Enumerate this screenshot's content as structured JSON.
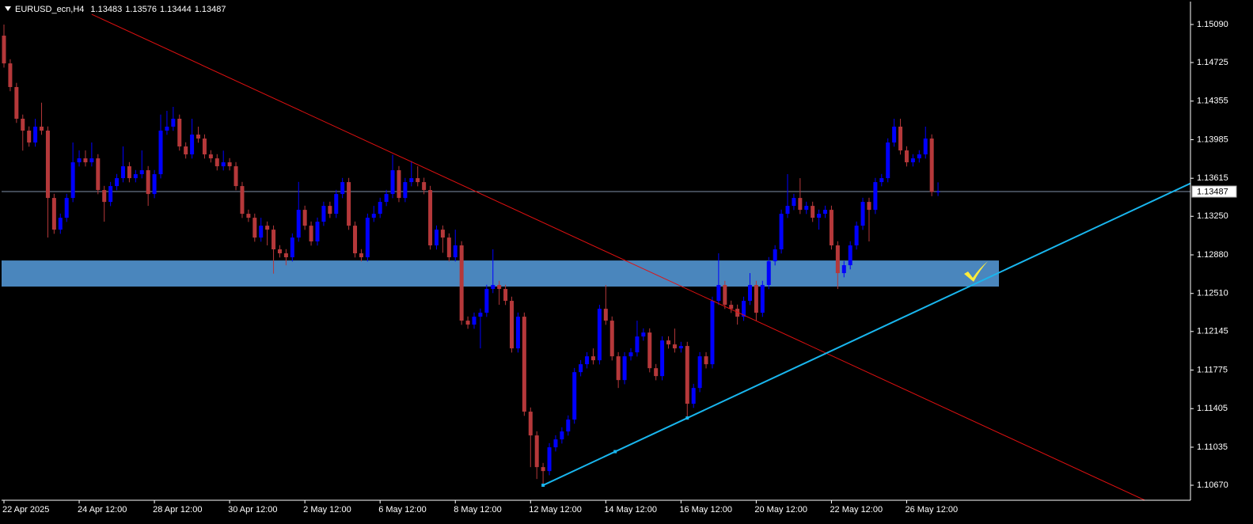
{
  "chart_data": {
    "type": "candlestick",
    "symbol": "EURUSD_ecn,H4",
    "ohlc": [
      1.13483,
      1.13576,
      1.13444,
      1.13487
    ],
    "bull_color": "#0000ff",
    "bear_color": "#b5383a",
    "grid": false,
    "ylim": [
      1.10526,
      1.15325
    ],
    "yticks": [
      {
        "value": 1.1509,
        "label": "1.15090"
      },
      1.14725,
      1.14355,
      1.13985,
      1.13615,
      {
        "value": 1.1325,
        "label": "1.13250"
      },
      {
        "value": 1.1288,
        "label": "1.12880"
      },
      {
        "value": 1.1251,
        "label": "1.12510"
      },
      1.12145,
      1.11775,
      1.11405,
      1.11035,
      {
        "value": 1.1067,
        "label": "1.10670"
      }
    ],
    "current_price": 1.13487,
    "current_price_color": "#7f8fa8",
    "zone": {
      "top": 1.12826,
      "bottom": 1.12576,
      "color": "#4a86bd"
    },
    "trendlines": [
      {
        "color": "#e01010",
        "points": [
          [
            14,
            1.15188
          ],
          [
            170,
            1.10859
          ]
        ]
      },
      {
        "color": "#19b6ee",
        "points": [
          [
            86,
            1.1067
          ],
          [
            109,
            1.11315
          ]
        ]
      }
    ],
    "categories": [
      "22 Apr 2025",
      null,
      null,
      null,
      null,
      null,
      null,
      null,
      null,
      null,
      null,
      null,
      "24 Apr 12:00",
      null,
      null,
      null,
      null,
      null,
      null,
      null,
      null,
      null,
      null,
      null,
      "28 Apr 12:00",
      null,
      null,
      null,
      null,
      null,
      null,
      null,
      null,
      null,
      null,
      null,
      "30 Apr 12:00",
      null,
      null,
      null,
      null,
      null,
      null,
      null,
      null,
      null,
      null,
      null,
      "2 May 12:00",
      null,
      null,
      null,
      null,
      null,
      null,
      null,
      null,
      null,
      null,
      null,
      "6 May 12:00",
      null,
      null,
      null,
      null,
      null,
      null,
      null,
      null,
      null,
      null,
      null,
      "8 May 12:00",
      null,
      null,
      null,
      null,
      null,
      null,
      null,
      null,
      null,
      null,
      null,
      "12 May 12:00",
      null,
      null,
      null,
      null,
      null,
      null,
      null,
      null,
      null,
      null,
      null,
      "14 May 12:00",
      null,
      null,
      null,
      null,
      null,
      null,
      null,
      null,
      null,
      null,
      null,
      "16 May 12:00",
      null,
      null,
      null,
      null,
      null,
      null,
      null,
      null,
      null,
      null,
      null,
      "20 May 12:00",
      null,
      null,
      null,
      null,
      null,
      null,
      null,
      null,
      null,
      null,
      null,
      "22 May 12:00",
      null,
      null,
      null,
      null,
      null,
      null,
      null,
      null,
      null,
      null,
      null,
      "26 May 12:00",
      null,
      null,
      null,
      null,
      null
    ],
    "open": [
      1.14983,
      1.14717,
      1.1449,
      1.14186,
      1.14072,
      1.13958,
      1.1411,
      1.14072,
      1.13426,
      1.13122,
      1.13236,
      1.13426,
      1.13768,
      1.13806,
      1.13768,
      1.13806,
      1.13502,
      1.13388,
      1.1354,
      1.13616,
      1.1373,
      1.13616,
      1.13654,
      1.13692,
      1.13464,
      1.13654,
      1.14072,
      1.1411,
      1.14186,
      1.1392,
      1.13844,
      1.14034,
      1.13996,
      1.13844,
      1.13806,
      1.1373,
      1.13768,
      1.1373,
      1.1354,
      1.13274,
      1.13236,
      1.13046,
      1.1316,
      1.13122,
      1.12933,
      1.12895,
      1.12857,
      1.13046,
      1.13312,
      1.1316,
      1.13009,
      1.13198,
      1.1335,
      1.13274,
      1.13464,
      1.13578,
      1.1316,
      1.12895,
      1.12857,
      1.13236,
      1.13274,
      1.13388,
      1.13464,
      1.13692,
      1.13426,
      1.13578,
      1.13616,
      1.13578,
      1.13502,
      1.12971,
      1.13122,
      1.13046,
      1.12857,
      1.12971,
      1.12249,
      1.12211,
      1.12287,
      1.12325,
      1.12553,
      1.12591,
      1.12553,
      1.12439,
      1.11983,
      1.12287,
      1.11376,
      1.11148,
      1.10844,
      1.10806,
      1.11034,
      1.1111,
      1.11186,
      1.113,
      1.11755,
      1.11831,
      1.11907,
      1.11869,
      1.12363,
      1.12249,
      1.11907,
      1.11679,
      1.11907,
      1.11945,
      1.12097,
      1.12135,
      1.11793,
      1.11717,
      1.12059,
      1.12021,
      1.11983,
      1.12006,
      1.11452,
      1.11603,
      1.11907,
      1.11831,
      1.12439,
      1.12591,
      1.12401,
      1.12363,
      1.12287,
      1.12439,
      1.12591,
      1.12325,
      1.12591,
      1.12819,
      1.12933,
      1.13274,
      1.1335,
      1.13426,
      1.13312,
      1.1335,
      1.13236,
      1.13274,
      1.13312,
      1.12971,
      1.12705,
      1.12781,
      1.12971,
      1.1316,
      1.13388,
      1.13312,
      1.13578,
      1.13616,
      1.13958,
      1.1411,
      1.13882,
      1.13768,
      1.13806,
      1.13844,
      1.13996,
      1.13483
    ],
    "high": [
      1.1509,
      1.14757,
      1.1453,
      1.14226,
      1.14112,
      1.14186,
      1.1434,
      1.14112,
      1.13466,
      1.13276,
      1.13466,
      1.13958,
      1.13882,
      1.13882,
      1.13958,
      1.13846,
      1.13542,
      1.1358,
      1.13656,
      1.1392,
      1.1377,
      1.13694,
      1.13882,
      1.13732,
      1.13694,
      1.14226,
      1.14262,
      1.143,
      1.14226,
      1.1396,
      1.14186,
      1.1411,
      1.14036,
      1.13884,
      1.13846,
      1.1388,
      1.13808,
      1.1377,
      1.1358,
      1.13314,
      1.13276,
      1.13236,
      1.132,
      1.13162,
      1.12973,
      1.12935,
      1.13086,
      1.1358,
      1.13352,
      1.132,
      1.13238,
      1.1339,
      1.1339,
      1.13504,
      1.13618,
      1.13618,
      1.132,
      1.12935,
      1.13276,
      1.1335,
      1.13428,
      1.13504,
      1.1384,
      1.13732,
      1.13618,
      1.1378,
      1.1373,
      1.1362,
      1.13542,
      1.13162,
      1.13162,
      1.13086,
      1.13122,
      1.13011,
      1.12289,
      1.12327,
      1.12365,
      1.12593,
      1.12933,
      1.12631,
      1.12593,
      1.12479,
      1.12327,
      1.12327,
      1.11416,
      1.11188,
      1.10884,
      1.11074,
      1.1115,
      1.11226,
      1.1134,
      1.11795,
      1.11871,
      1.11947,
      1.11983,
      1.12401,
      1.12591,
      1.12289,
      1.11947,
      1.11947,
      1.11985,
      1.12249,
      1.12175,
      1.12175,
      1.11833,
      1.12099,
      1.12099,
      1.12173,
      1.12046,
      1.12046,
      1.11643,
      1.11947,
      1.11947,
      1.12479,
      1.12895,
      1.12631,
      1.12441,
      1.12403,
      1.12479,
      1.12705,
      1.12631,
      1.12631,
      1.12859,
      1.12973,
      1.13314,
      1.13654,
      1.13466,
      1.13616,
      1.1339,
      1.1339,
      1.13314,
      1.13352,
      1.13352,
      1.13011,
      1.12821,
      1.13011,
      1.132,
      1.13428,
      1.13428,
      1.13618,
      1.13656,
      1.13998,
      1.14186,
      1.14186,
      1.13922,
      1.13846,
      1.13884,
      1.1411,
      1.14036,
      1.13576
    ],
    "low": [
      1.14677,
      1.1445,
      1.14146,
      1.1388,
      1.13918,
      1.13918,
      1.14032,
      1.13046,
      1.13082,
      1.13082,
      1.13196,
      1.13386,
      1.13728,
      1.13728,
      1.13728,
      1.13462,
      1.13198,
      1.13348,
      1.135,
      1.13576,
      1.13576,
      1.13576,
      1.13614,
      1.1335,
      1.13424,
      1.13614,
      1.14032,
      1.1407,
      1.1388,
      1.13804,
      1.13804,
      1.13956,
      1.13804,
      1.13766,
      1.1369,
      1.1369,
      1.1369,
      1.135,
      1.13234,
      1.13196,
      1.13006,
      1.13006,
      1.12971,
      1.127,
      1.12855,
      1.1278,
      1.12817,
      1.13006,
      1.1312,
      1.12969,
      1.12969,
      1.13158,
      1.13234,
      1.13234,
      1.13424,
      1.1312,
      1.12855,
      1.12817,
      1.12817,
      1.13196,
      1.13234,
      1.13348,
      1.13424,
      1.13386,
      1.13386,
      1.13538,
      1.13538,
      1.13462,
      1.12931,
      1.12931,
      1.129,
      1.12817,
      1.12817,
      1.12209,
      1.12171,
      1.12171,
      1.11983,
      1.12285,
      1.12513,
      1.12401,
      1.12399,
      1.11943,
      1.11943,
      1.11336,
      1.10844,
      1.1073,
      1.1067,
      1.10766,
      1.10994,
      1.1107,
      1.11146,
      1.1126,
      1.11715,
      1.11791,
      1.11829,
      1.11829,
      1.12209,
      1.11867,
      1.11603,
      1.11639,
      1.11867,
      1.11905,
      1.12057,
      1.11753,
      1.11677,
      1.11677,
      1.11981,
      1.11943,
      1.11943,
      1.113,
      1.11412,
      1.11563,
      1.11791,
      1.11791,
      1.12399,
      1.12361,
      1.12323,
      1.12211,
      1.12247,
      1.12399,
      1.12249,
      1.12285,
      1.12551,
      1.12779,
      1.12893,
      1.13234,
      1.1331,
      1.13272,
      1.13272,
      1.13196,
      1.13122,
      1.13234,
      1.12931,
      1.12553,
      1.12665,
      1.12741,
      1.12931,
      1.1312,
      1.13009,
      1.13272,
      1.13538,
      1.13576,
      1.13918,
      1.13842,
      1.13728,
      1.13728,
      1.13766,
      1.13804,
      1.13443,
      1.13444
    ],
    "close": [
      1.14717,
      1.1449,
      1.14186,
      1.14072,
      1.13958,
      1.1411,
      1.14072,
      1.13426,
      1.13122,
      1.13236,
      1.13426,
      1.13768,
      1.13806,
      1.13768,
      1.13806,
      1.13502,
      1.13388,
      1.1354,
      1.13616,
      1.1373,
      1.13616,
      1.13654,
      1.13692,
      1.13464,
      1.13654,
      1.14072,
      1.1411,
      1.14186,
      1.1392,
      1.13844,
      1.14034,
      1.13996,
      1.13844,
      1.13806,
      1.1373,
      1.13768,
      1.1373,
      1.1354,
      1.13274,
      1.13236,
      1.13046,
      1.1316,
      1.13122,
      1.12933,
      1.12895,
      1.12857,
      1.13046,
      1.13312,
      1.1316,
      1.13009,
      1.13198,
      1.1335,
      1.13274,
      1.13464,
      1.13578,
      1.1316,
      1.12895,
      1.12857,
      1.13236,
      1.13274,
      1.13388,
      1.13464,
      1.13692,
      1.13426,
      1.13578,
      1.13616,
      1.13578,
      1.13502,
      1.12971,
      1.13122,
      1.13046,
      1.12857,
      1.12971,
      1.12249,
      1.12211,
      1.12287,
      1.12325,
      1.12553,
      1.12591,
      1.12553,
      1.12439,
      1.11983,
      1.12287,
      1.11376,
      1.11148,
      1.10844,
      1.10806,
      1.11034,
      1.1111,
      1.11186,
      1.113,
      1.11755,
      1.11831,
      1.11907,
      1.11869,
      1.12363,
      1.12249,
      1.11907,
      1.11679,
      1.11907,
      1.11945,
      1.12097,
      1.12135,
      1.11793,
      1.11717,
      1.12059,
      1.12021,
      1.11983,
      1.12006,
      1.11452,
      1.11603,
      1.11907,
      1.11831,
      1.12439,
      1.12591,
      1.12401,
      1.12363,
      1.12287,
      1.12439,
      1.12591,
      1.12325,
      1.12591,
      1.12819,
      1.12933,
      1.13274,
      1.1335,
      1.13426,
      1.13312,
      1.1335,
      1.13236,
      1.13274,
      1.13312,
      1.12971,
      1.12705,
      1.12781,
      1.12971,
      1.1316,
      1.13388,
      1.13312,
      1.13578,
      1.13616,
      1.13958,
      1.1411,
      1.13882,
      1.13768,
      1.13806,
      1.13844,
      1.13996,
      1.13483,
      1.13487
    ]
  }
}
